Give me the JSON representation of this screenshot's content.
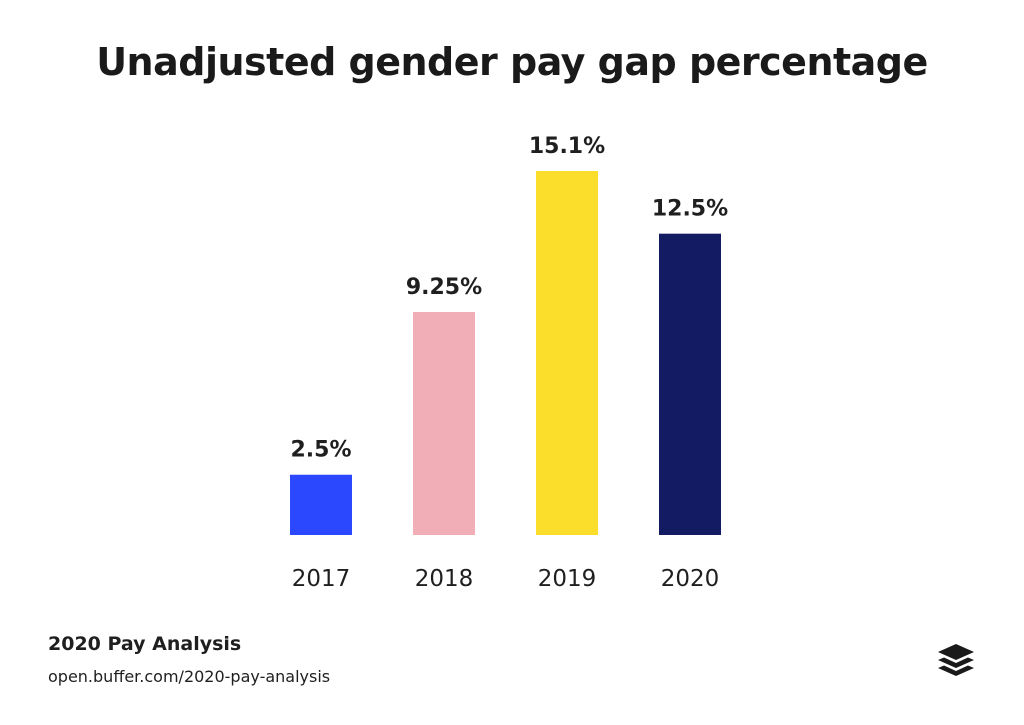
{
  "title": "Unadjusted gender pay gap percentage",
  "footer": {
    "heading": "2020 Pay Analysis",
    "url": "open.buffer.com/2020-pay-analysis",
    "logo_icon": "buffer-stack-logo"
  },
  "chart_data": {
    "type": "bar",
    "title": "Unadjusted gender pay gap percentage",
    "categories": [
      "2017",
      "2018",
      "2019",
      "2020"
    ],
    "values": [
      2.5,
      9.25,
      15.1,
      12.5
    ],
    "value_labels": [
      "2.5%",
      "9.25%",
      "15.1%",
      "12.5%"
    ],
    "colors": [
      "#2b48ff",
      "#f2aeb6",
      "#fbdd2c",
      "#131c62"
    ],
    "xlabel": "",
    "ylabel": "",
    "ylim": [
      0,
      15.1
    ],
    "grid": false,
    "legend": "none"
  }
}
